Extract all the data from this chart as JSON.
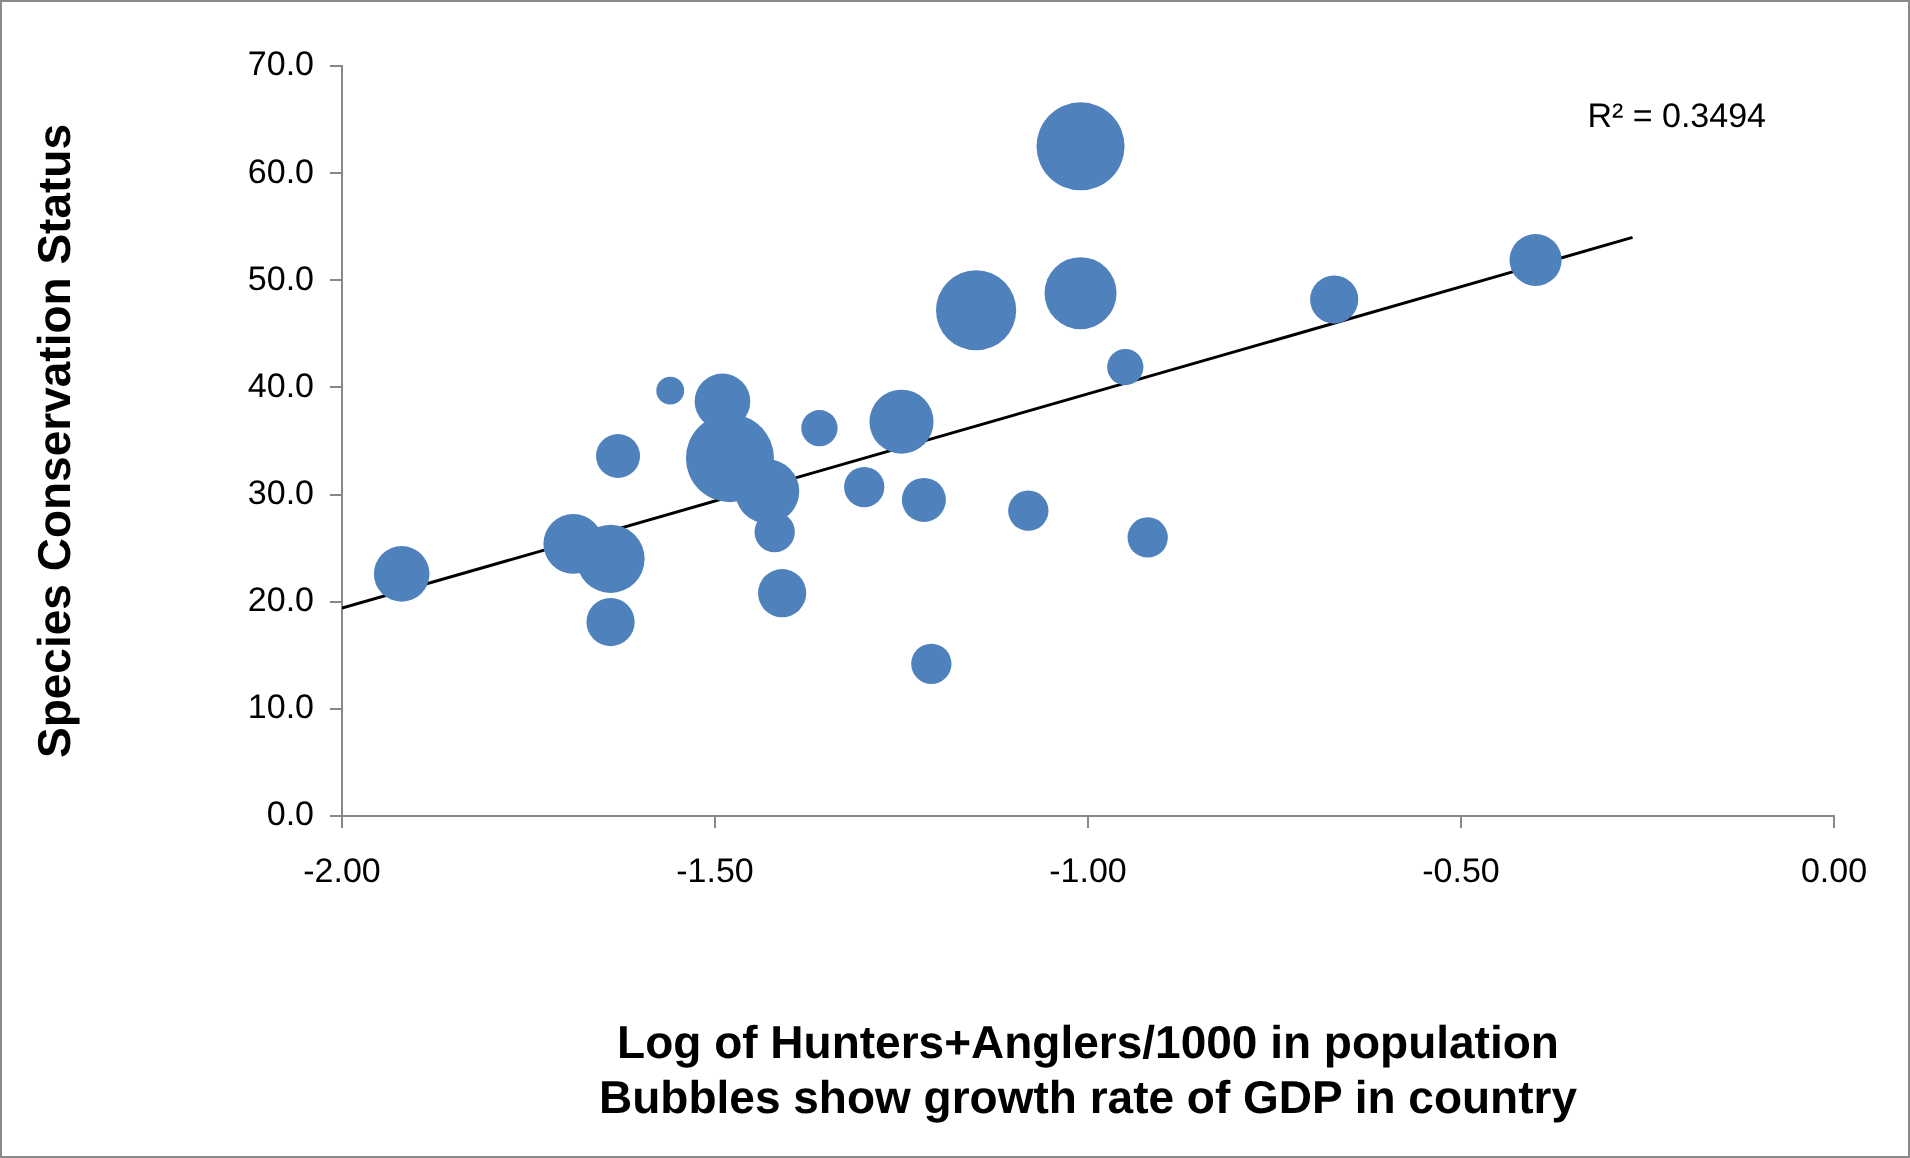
{
  "chart_data": {
    "type": "bubble",
    "xlabel": "Log of Hunters+Anglers/1000 in population\nBubbles show growth rate of GDP in country",
    "ylabel": "Species Conservation Status",
    "annotations": [
      "R² = 0.3494"
    ],
    "series": [
      {
        "color": "#4f81bd",
        "x": [
          -1.92,
          -1.69,
          -1.64,
          -1.64,
          -1.63,
          -1.56,
          -1.49,
          -1.48,
          -1.43,
          -1.42,
          -1.41,
          -1.36,
          -1.3,
          -1.25,
          -1.22,
          -1.21,
          -1.15,
          -1.08,
          -1.01,
          -1.01,
          -0.95,
          -0.92,
          -0.67,
          -0.4
        ],
        "values": [
          22.6,
          25.4,
          24.0,
          18.1,
          33.6,
          39.7,
          38.7,
          33.4,
          30.3,
          26.5,
          20.8,
          36.2,
          30.7,
          36.8,
          29.5,
          14.2,
          47.2,
          28.5,
          48.8,
          62.5,
          41.9,
          26.0,
          48.2,
          51.9
        ],
        "sizes": [
          0.4,
          0.46,
          0.6,
          0.3,
          0.25,
          0.1,
          0.4,
          1,
          0.53,
          0.21,
          0.3,
          0.17,
          0.21,
          0.53,
          0.25,
          0.21,
          0.83,
          0.21,
          0.67,
          1,
          0.17,
          0.21,
          0.3,
          0.35
        ]
      },
      {
        "type": "line",
        "color": "#000000",
        "x": [
          -2,
          -0.27
        ],
        "values": [
          19.4,
          54.0
        ]
      }
    ],
    "xlim": [
      -2,
      0
    ],
    "xticks": [
      {
        "value": -2,
        "label": "-2.00"
      },
      {
        "value": -1.5,
        "label": "-1.50"
      },
      {
        "value": -1,
        "label": "-1.00"
      },
      {
        "value": -0.5,
        "label": "-0.50"
      },
      {
        "value": 0,
        "label": "0.00"
      }
    ],
    "ylim": [
      0,
      70
    ],
    "yticks": [
      {
        "value": 0,
        "label": "0.0"
      },
      {
        "value": 10,
        "label": "10.0"
      },
      {
        "value": 20,
        "label": "20.0"
      },
      {
        "value": 30,
        "label": "30.0"
      },
      {
        "value": 40,
        "label": "40.0"
      },
      {
        "value": 50,
        "label": "50.0"
      },
      {
        "value": 60,
        "label": "60.0"
      },
      {
        "value": 70,
        "label": "70.0"
      }
    ],
    "grid": false,
    "legend": false
  }
}
